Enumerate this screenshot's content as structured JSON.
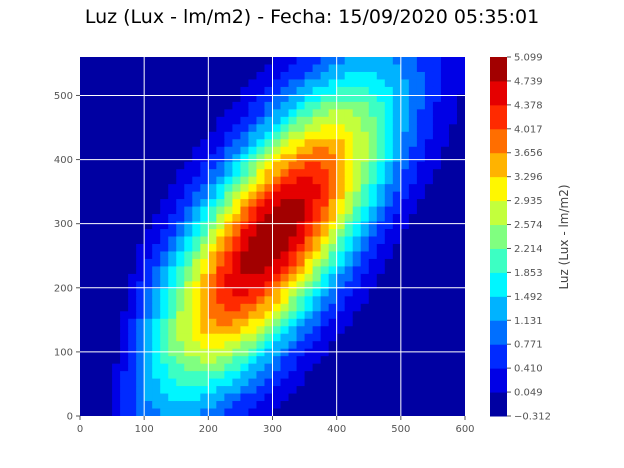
{
  "chart_data": {
    "type": "heatmap",
    "subtype": "filled-contour",
    "title": "Luz (Lux - lm/m2) - Fecha: 15/09/2020 05:35:01",
    "xlabel": "",
    "ylabel": "",
    "xlim": [
      0,
      600
    ],
    "ylim": [
      0,
      560
    ],
    "x_ticks": [
      "0",
      "100",
      "200",
      "300",
      "400",
      "500",
      "600"
    ],
    "y_ticks": [
      "0",
      "100",
      "200",
      "300",
      "400",
      "500"
    ],
    "grid": true,
    "colormap": "jet",
    "colorbar": {
      "label": "Luz (Lux - lm/m2)",
      "min": -0.312,
      "max": 5.099,
      "ticks": [
        "5.099",
        "4.739",
        "4.378",
        "4.017",
        "3.656",
        "3.296",
        "2.935",
        "2.574",
        "2.214",
        "1.853",
        "1.492",
        "1.131",
        "0.771",
        "0.410",
        "0.049",
        "−0.312"
      ]
    },
    "field": {
      "peak": {
        "x": 300,
        "y": 280,
        "value": 5.099
      },
      "minima": [
        {
          "x": 0,
          "y": 110,
          "value": -0.312
        },
        {
          "x": 600,
          "y": 140,
          "value": -0.312
        }
      ]
    }
  }
}
